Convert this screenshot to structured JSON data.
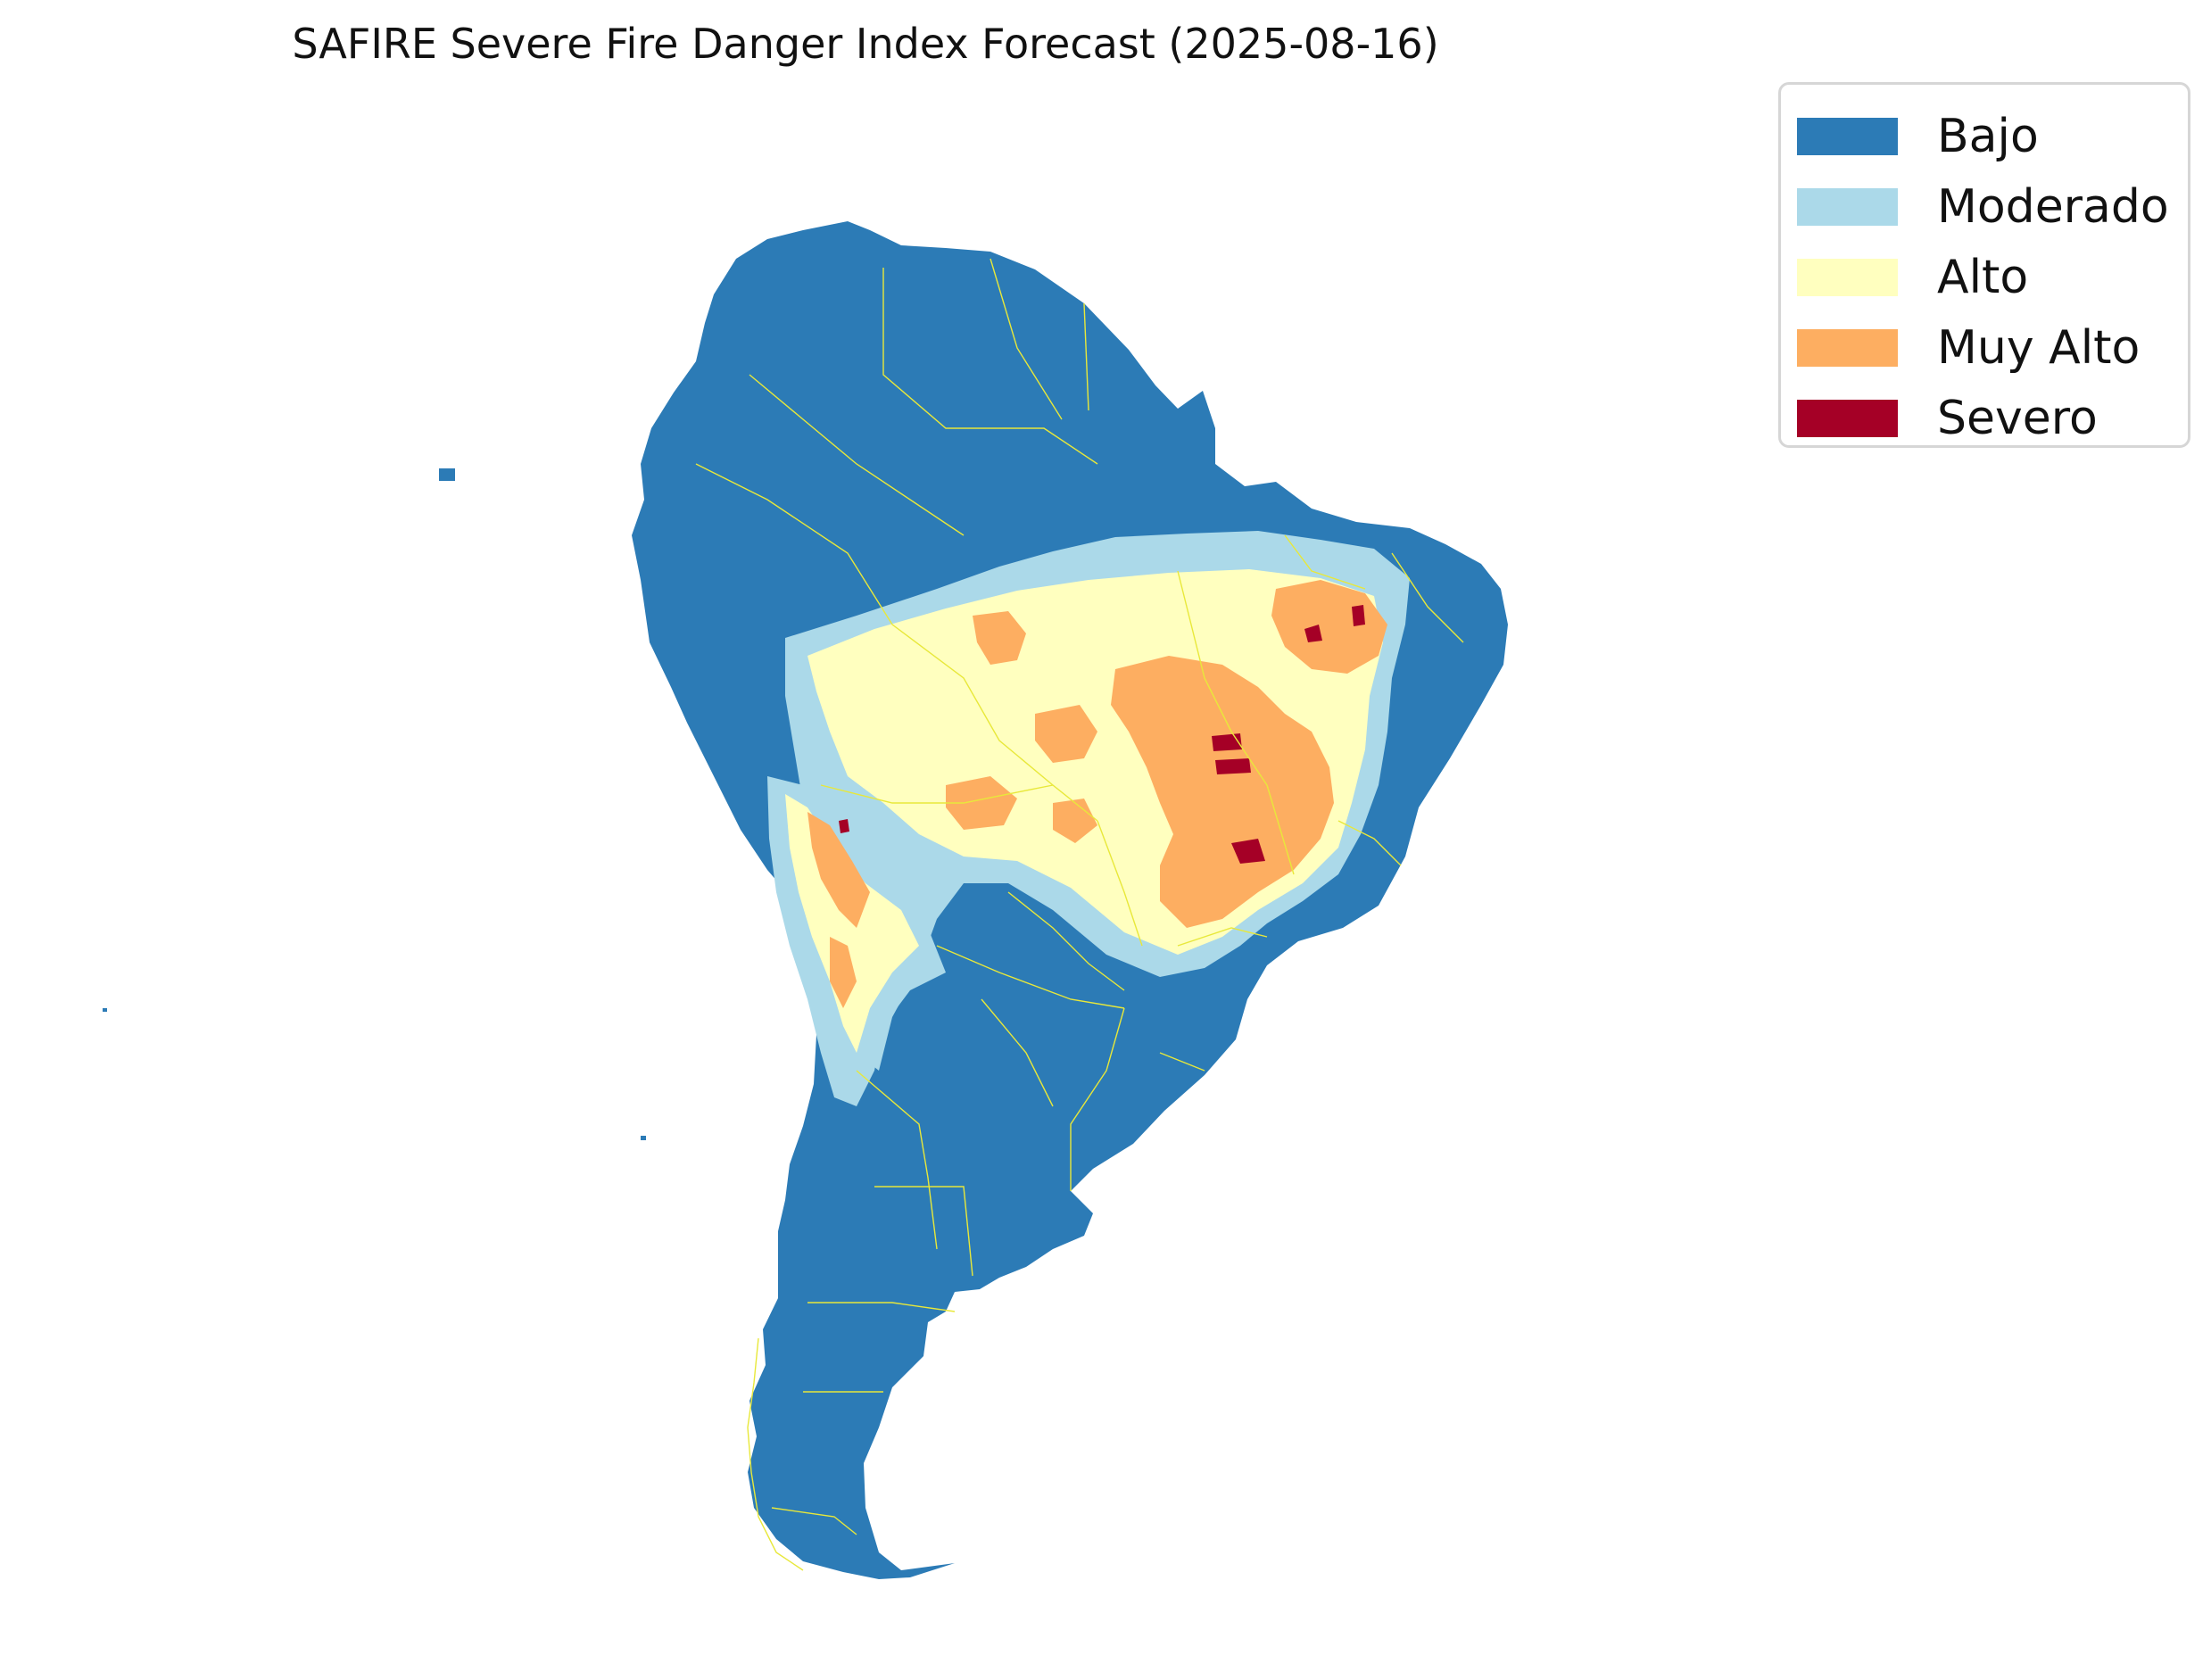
{
  "title": "SAFIRE Severe Fire Danger Index Forecast (2025-08-16)",
  "legend": {
    "items": [
      {
        "label": "Bajo",
        "color": "#2c7bb6"
      },
      {
        "label": "Moderado",
        "color": "#abd9e9"
      },
      {
        "label": "Alto",
        "color": "#ffffbf"
      },
      {
        "label": "Muy Alto",
        "color": "#fdae61"
      },
      {
        "label": "Severo",
        "color": "#a50026"
      }
    ]
  },
  "border_color": "#e8e83a"
}
